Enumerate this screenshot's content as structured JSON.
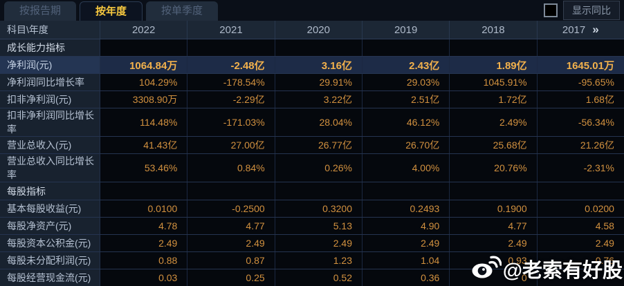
{
  "tabs": [
    {
      "label": "按报告期",
      "active": false
    },
    {
      "label": "按年度",
      "active": true
    },
    {
      "label": "按单季度",
      "active": false
    }
  ],
  "controls": {
    "show_yoy_label": "显示同比",
    "checkbox_checked": false
  },
  "table": {
    "corner_label": "科目\\年度",
    "years": [
      "2022",
      "2021",
      "2020",
      "2019",
      "2018",
      "2017"
    ],
    "more_icon": "»",
    "rows": [
      {
        "type": "section",
        "label": "成长能力指标",
        "highlight": false,
        "values": [
          "",
          "",
          "",
          "",
          "",
          ""
        ]
      },
      {
        "type": "data",
        "label": "净利润(元)",
        "highlight": true,
        "values": [
          "1064.84万",
          "-2.48亿",
          "3.16亿",
          "2.43亿",
          "1.89亿",
          "1645.01万"
        ]
      },
      {
        "type": "data",
        "label": "净利润同比增长率",
        "highlight": false,
        "values": [
          "104.29%",
          "-178.54%",
          "29.91%",
          "29.03%",
          "1045.91%",
          "-95.65%"
        ]
      },
      {
        "type": "data",
        "label": "扣非净利润(元)",
        "highlight": false,
        "values": [
          "3308.90万",
          "-2.29亿",
          "3.22亿",
          "2.51亿",
          "1.72亿",
          "1.68亿"
        ]
      },
      {
        "type": "data",
        "label": "扣非净利润同比增长率",
        "highlight": false,
        "values": [
          "114.48%",
          "-171.03%",
          "28.04%",
          "46.12%",
          "2.49%",
          "-56.34%"
        ]
      },
      {
        "type": "data",
        "label": "营业总收入(元)",
        "highlight": false,
        "values": [
          "41.43亿",
          "27.00亿",
          "26.77亿",
          "26.70亿",
          "25.68亿",
          "21.26亿"
        ]
      },
      {
        "type": "data",
        "label": "营业总收入同比增长率",
        "highlight": false,
        "values": [
          "53.46%",
          "0.84%",
          "0.26%",
          "4.00%",
          "20.76%",
          "-2.31%"
        ]
      },
      {
        "type": "section",
        "label": "每股指标",
        "highlight": false,
        "values": [
          "",
          "",
          "",
          "",
          "",
          ""
        ]
      },
      {
        "type": "data",
        "label": "基本每股收益(元)",
        "highlight": false,
        "values": [
          "0.0100",
          "-0.2500",
          "0.3200",
          "0.2493",
          "0.1900",
          "0.0200"
        ]
      },
      {
        "type": "data",
        "label": "每股净资产(元)",
        "highlight": false,
        "values": [
          "4.78",
          "4.77",
          "5.13",
          "4.90",
          "4.77",
          "4.58"
        ]
      },
      {
        "type": "data",
        "label": "每股资本公积金(元)",
        "highlight": false,
        "values": [
          "2.49",
          "2.49",
          "2.49",
          "2.49",
          "2.49",
          "2.49"
        ]
      },
      {
        "type": "data",
        "label": "每股未分配利润(元)",
        "highlight": false,
        "values": [
          "0.88",
          "0.87",
          "1.23",
          "1.04",
          "0.93",
          "0.76"
        ]
      },
      {
        "type": "data",
        "label": "每股经营现金流(元)",
        "highlight": false,
        "values": [
          "0.03",
          "0.25",
          "0.52",
          "0.36",
          "0",
          ""
        ]
      }
    ]
  },
  "watermark": {
    "text": "@老索有好股",
    "icon": "weibo-icon"
  },
  "colors": {
    "background": "#0a0f18",
    "accent_value": "#d2913f",
    "highlight_value": "#f2b14c",
    "active_tab_text": "#f7c83f",
    "label_text": "#b5c1d2",
    "header_bg": "#1c2735",
    "highlight_row_bg": "#1d2b47"
  }
}
